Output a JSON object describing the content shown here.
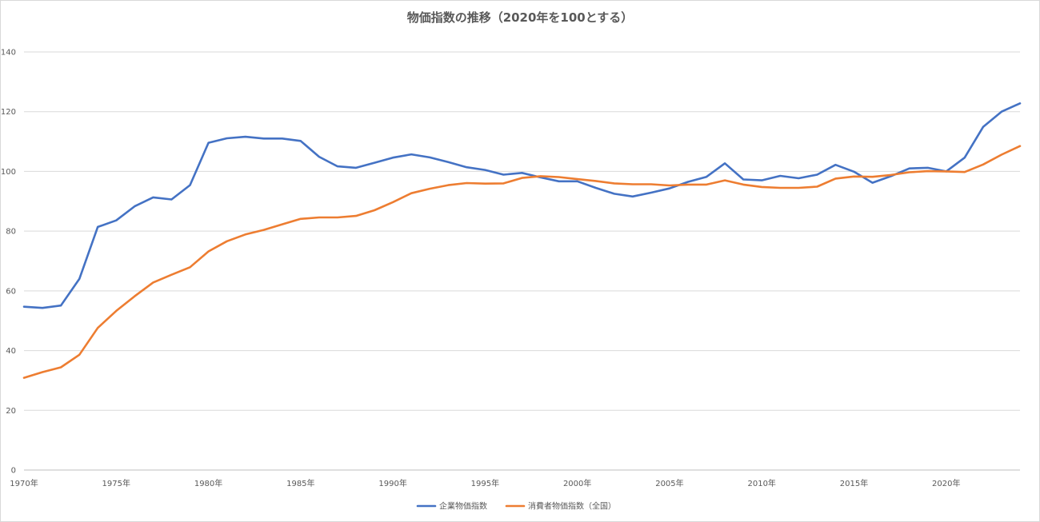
{
  "chart_data": {
    "type": "line",
    "title": "物価指数の推移（2020年を100とする）",
    "xlabel": "",
    "ylabel": "",
    "ylim": [
      0,
      140
    ],
    "yticks": [
      0,
      20,
      40,
      60,
      80,
      100,
      120,
      140
    ],
    "xlim": [
      1970,
      2024
    ],
    "xticks": [
      {
        "value": 1970,
        "label": "1970年"
      },
      {
        "value": 1975,
        "label": "1975年"
      },
      {
        "value": 1980,
        "label": "1980年"
      },
      {
        "value": 1985,
        "label": "1985年"
      },
      {
        "value": 1990,
        "label": "1990年"
      },
      {
        "value": 1995,
        "label": "1995年"
      },
      {
        "value": 2000,
        "label": "2000年"
      },
      {
        "value": 2005,
        "label": "2005年"
      },
      {
        "value": 2010,
        "label": "2010年"
      },
      {
        "value": 2015,
        "label": "2015年"
      },
      {
        "value": 2020,
        "label": "2020年"
      }
    ],
    "grid": true,
    "legend_position": "bottom",
    "x": [
      1970,
      1971,
      1972,
      1973,
      1974,
      1975,
      1976,
      1977,
      1978,
      1979,
      1980,
      1981,
      1982,
      1983,
      1984,
      1985,
      1986,
      1987,
      1988,
      1989,
      1990,
      1991,
      1992,
      1993,
      1994,
      1995,
      1996,
      1997,
      1998,
      1999,
      2000,
      2001,
      2002,
      2003,
      2004,
      2005,
      2006,
      2007,
      2008,
      2009,
      2010,
      2011,
      2012,
      2013,
      2014,
      2015,
      2016,
      2017,
      2018,
      2019,
      2020,
      2021,
      2022,
      2023,
      2024
    ],
    "series": [
      {
        "name": "企業物価指数",
        "color": "#4472c4",
        "values": [
          54.7,
          54.3,
          55.1,
          64.0,
          81.4,
          83.6,
          88.3,
          91.3,
          90.6,
          95.4,
          109.6,
          111.1,
          111.6,
          111.0,
          111.0,
          110.2,
          104.9,
          101.7,
          101.2,
          102.9,
          104.6,
          105.7,
          104.7,
          103.1,
          101.4,
          100.5,
          98.9,
          99.5,
          98.0,
          96.7,
          96.7,
          94.5,
          92.5,
          91.6,
          92.9,
          94.3,
          96.5,
          98.2,
          102.7,
          97.3,
          97.0,
          98.5,
          97.7,
          98.9,
          102.2,
          99.9,
          96.2,
          98.4,
          101.0,
          101.2,
          100.0,
          104.6,
          114.9,
          120.0,
          122.8
        ]
      },
      {
        "name": "消費者物価指数（全国）",
        "color": "#ed7d31",
        "values": [
          30.9,
          32.8,
          34.4,
          38.6,
          47.6,
          53.3,
          58.2,
          62.8,
          65.4,
          67.9,
          73.2,
          76.6,
          78.9,
          80.4,
          82.3,
          84.1,
          84.6,
          84.6,
          85.1,
          87.0,
          89.7,
          92.7,
          94.2,
          95.4,
          96.1,
          95.9,
          96.0,
          97.8,
          98.4,
          98.1,
          97.4,
          96.8,
          96.0,
          95.7,
          95.7,
          95.3,
          95.6,
          95.6,
          97.0,
          95.6,
          94.8,
          94.5,
          94.5,
          94.9,
          97.6,
          98.3,
          98.2,
          98.8,
          99.7,
          100.1,
          100.0,
          99.8,
          102.3,
          105.6,
          108.5
        ]
      }
    ]
  }
}
